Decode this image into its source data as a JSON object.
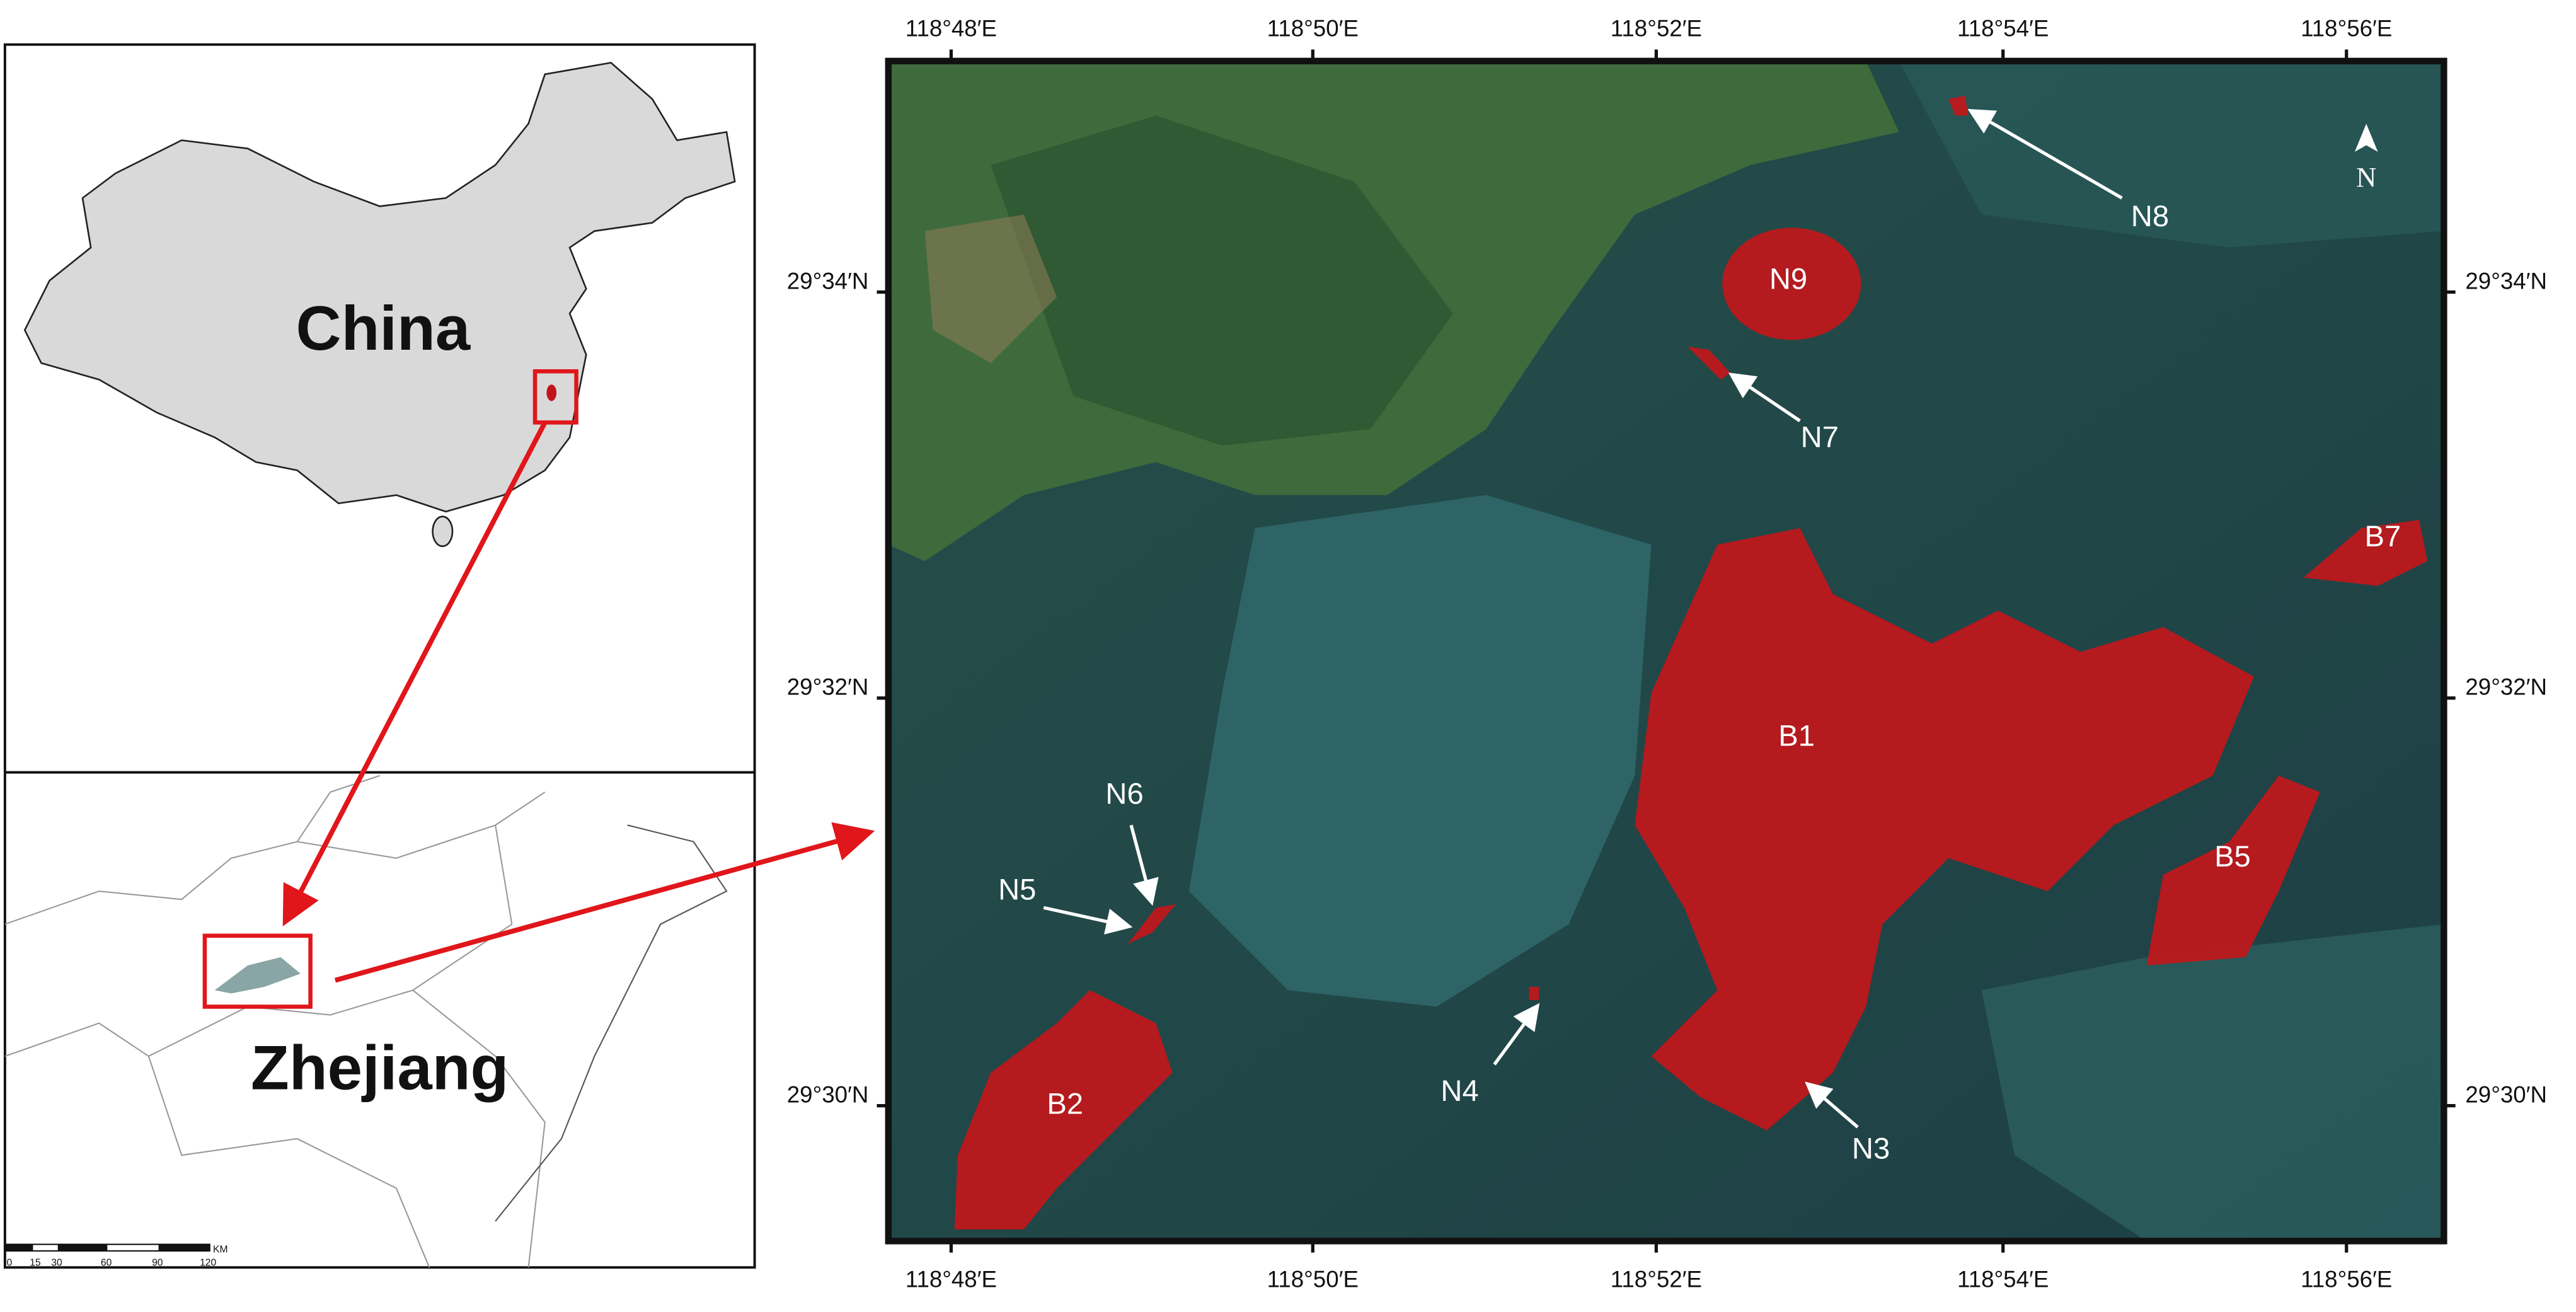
{
  "insets": {
    "china_label": "China",
    "zhejiang_label": "Zhejiang",
    "scale_bar": {
      "ticks": [
        "0",
        "15",
        "30",
        "60",
        "90",
        "120"
      ],
      "unit": "KM"
    }
  },
  "map": {
    "top_ticks": [
      "118°48′E",
      "118°50′E",
      "118°52′E",
      "118°54′E",
      "118°56′E"
    ],
    "bottom_ticks": [
      "118°48′E",
      "118°50′E",
      "118°52′E",
      "118°54′E",
      "118°56′E"
    ],
    "left_ticks": [
      "29°34′N",
      "29°32′N",
      "29°30′N"
    ],
    "right_ticks": [
      "29°34′N",
      "29°32′N",
      "29°30′N"
    ],
    "north": "N",
    "sites": [
      "N9",
      "B1",
      "B5",
      "B7",
      "B2",
      "N8",
      "N7",
      "N5",
      "N6",
      "N4",
      "N3"
    ]
  }
}
